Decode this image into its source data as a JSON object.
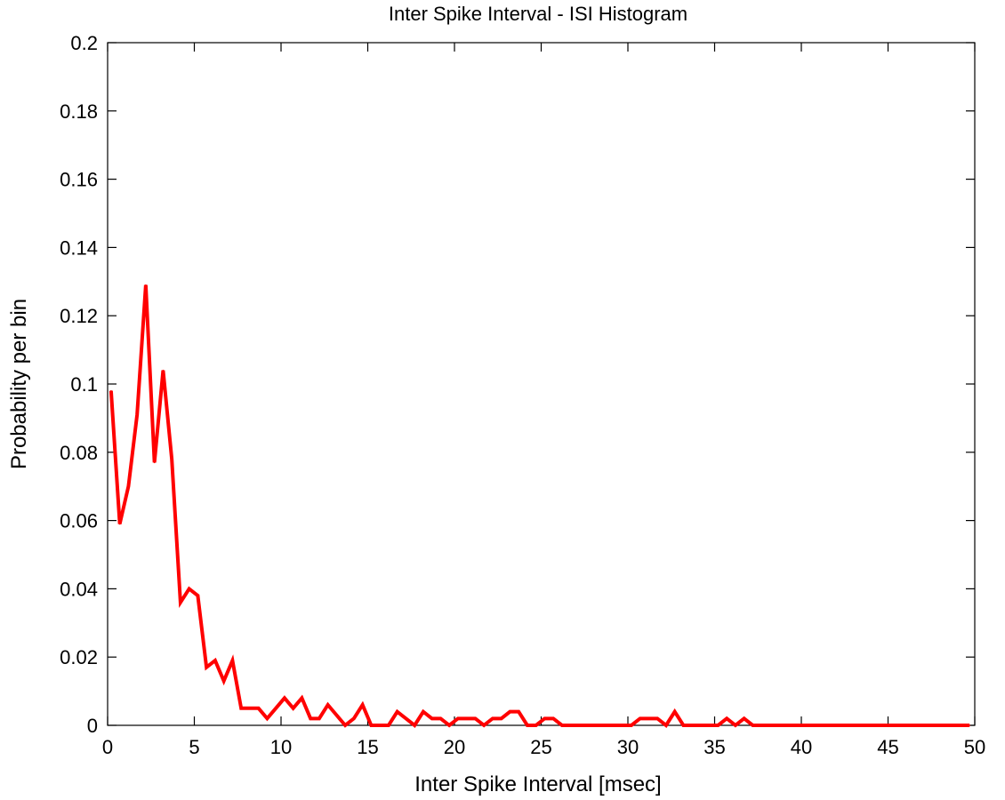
{
  "chart_data": {
    "type": "line",
    "title": "Inter Spike Interval - ISI Histogram",
    "xlabel": "Inter Spike Interval [msec]",
    "ylabel": "Probability per bin",
    "xlim": [
      0,
      50
    ],
    "ylim": [
      0,
      0.2
    ],
    "xticks": [
      0,
      5,
      10,
      15,
      20,
      25,
      30,
      35,
      40,
      45,
      50
    ],
    "yticks": [
      0,
      0.02,
      0.04,
      0.06,
      0.08,
      0.1,
      0.12,
      0.14,
      0.16,
      0.18,
      0.2
    ],
    "xtick_labels": [
      "0",
      "5",
      "10",
      "15",
      "20",
      "25",
      "30",
      "35",
      "40",
      "45",
      "50"
    ],
    "ytick_labels": [
      "0",
      "0.02",
      "0.04",
      "0.06",
      "0.08",
      "0.1",
      "0.12",
      "0.14",
      "0.16",
      "0.18",
      "0.2"
    ],
    "grid": false,
    "series": [
      {
        "color": "#ff0000",
        "x": [
          0.2,
          0.7,
          1.2,
          1.7,
          2.2,
          2.7,
          3.2,
          3.7,
          4.2,
          4.7,
          5.2,
          5.7,
          6.2,
          6.7,
          7.2,
          7.7,
          8.2,
          8.7,
          9.2,
          9.7,
          10.2,
          10.7,
          11.2,
          11.7,
          12.2,
          12.7,
          13.2,
          13.7,
          14.2,
          14.7,
          15.2,
          15.7,
          16.2,
          16.7,
          17.2,
          17.7,
          18.2,
          18.7,
          19.2,
          19.7,
          20.2,
          20.7,
          21.2,
          21.7,
          22.2,
          22.7,
          23.2,
          23.7,
          24.2,
          24.7,
          25.2,
          25.7,
          26.2,
          26.7,
          27.2,
          27.7,
          28.2,
          28.7,
          29.2,
          29.7,
          30.2,
          30.7,
          31.2,
          31.7,
          32.2,
          32.7,
          33.2,
          33.7,
          34.2,
          34.7,
          35.2,
          35.7,
          36.2,
          36.7,
          37.2,
          37.7,
          38.2,
          38.7,
          39.2,
          39.7,
          40.2,
          40.7,
          41.2,
          41.7,
          42.2,
          42.7,
          43.2,
          43.7,
          44.2,
          44.7,
          45.2,
          45.7,
          46.2,
          46.7,
          47.2,
          47.7,
          48.2,
          48.7,
          49.2,
          49.7
        ],
        "y": [
          0.098,
          0.059,
          0.07,
          0.091,
          0.129,
          0.077,
          0.104,
          0.078,
          0.036,
          0.04,
          0.038,
          0.017,
          0.019,
          0.013,
          0.019,
          0.005,
          0.005,
          0.005,
          0.002,
          0.005,
          0.008,
          0.005,
          0.008,
          0.002,
          0.002,
          0.006,
          0.003,
          0.0,
          0.002,
          0.006,
          0.0,
          0.0,
          0.0,
          0.004,
          0.002,
          0.0,
          0.004,
          0.002,
          0.002,
          0.0,
          0.002,
          0.002,
          0.002,
          0.0,
          0.002,
          0.002,
          0.004,
          0.004,
          0.0,
          0.0,
          0.002,
          0.002,
          0.0,
          0.0,
          0.0,
          0.0,
          0.0,
          0.0,
          0.0,
          0.0,
          0.0,
          0.002,
          0.002,
          0.002,
          0.0,
          0.004,
          0.0,
          0.0,
          0.0,
          0.0,
          0.0,
          0.002,
          0.0,
          0.002,
          0.0,
          0.0,
          0.0,
          0.0,
          0.0,
          0.0,
          0.0,
          0.0,
          0.0,
          0.0,
          0.0,
          0.0,
          0.0,
          0.0,
          0.0,
          0.0,
          0.0,
          0.0,
          0.0,
          0.0,
          0.0,
          0.0,
          0.0,
          0.0,
          0.0,
          0.0
        ]
      }
    ]
  }
}
